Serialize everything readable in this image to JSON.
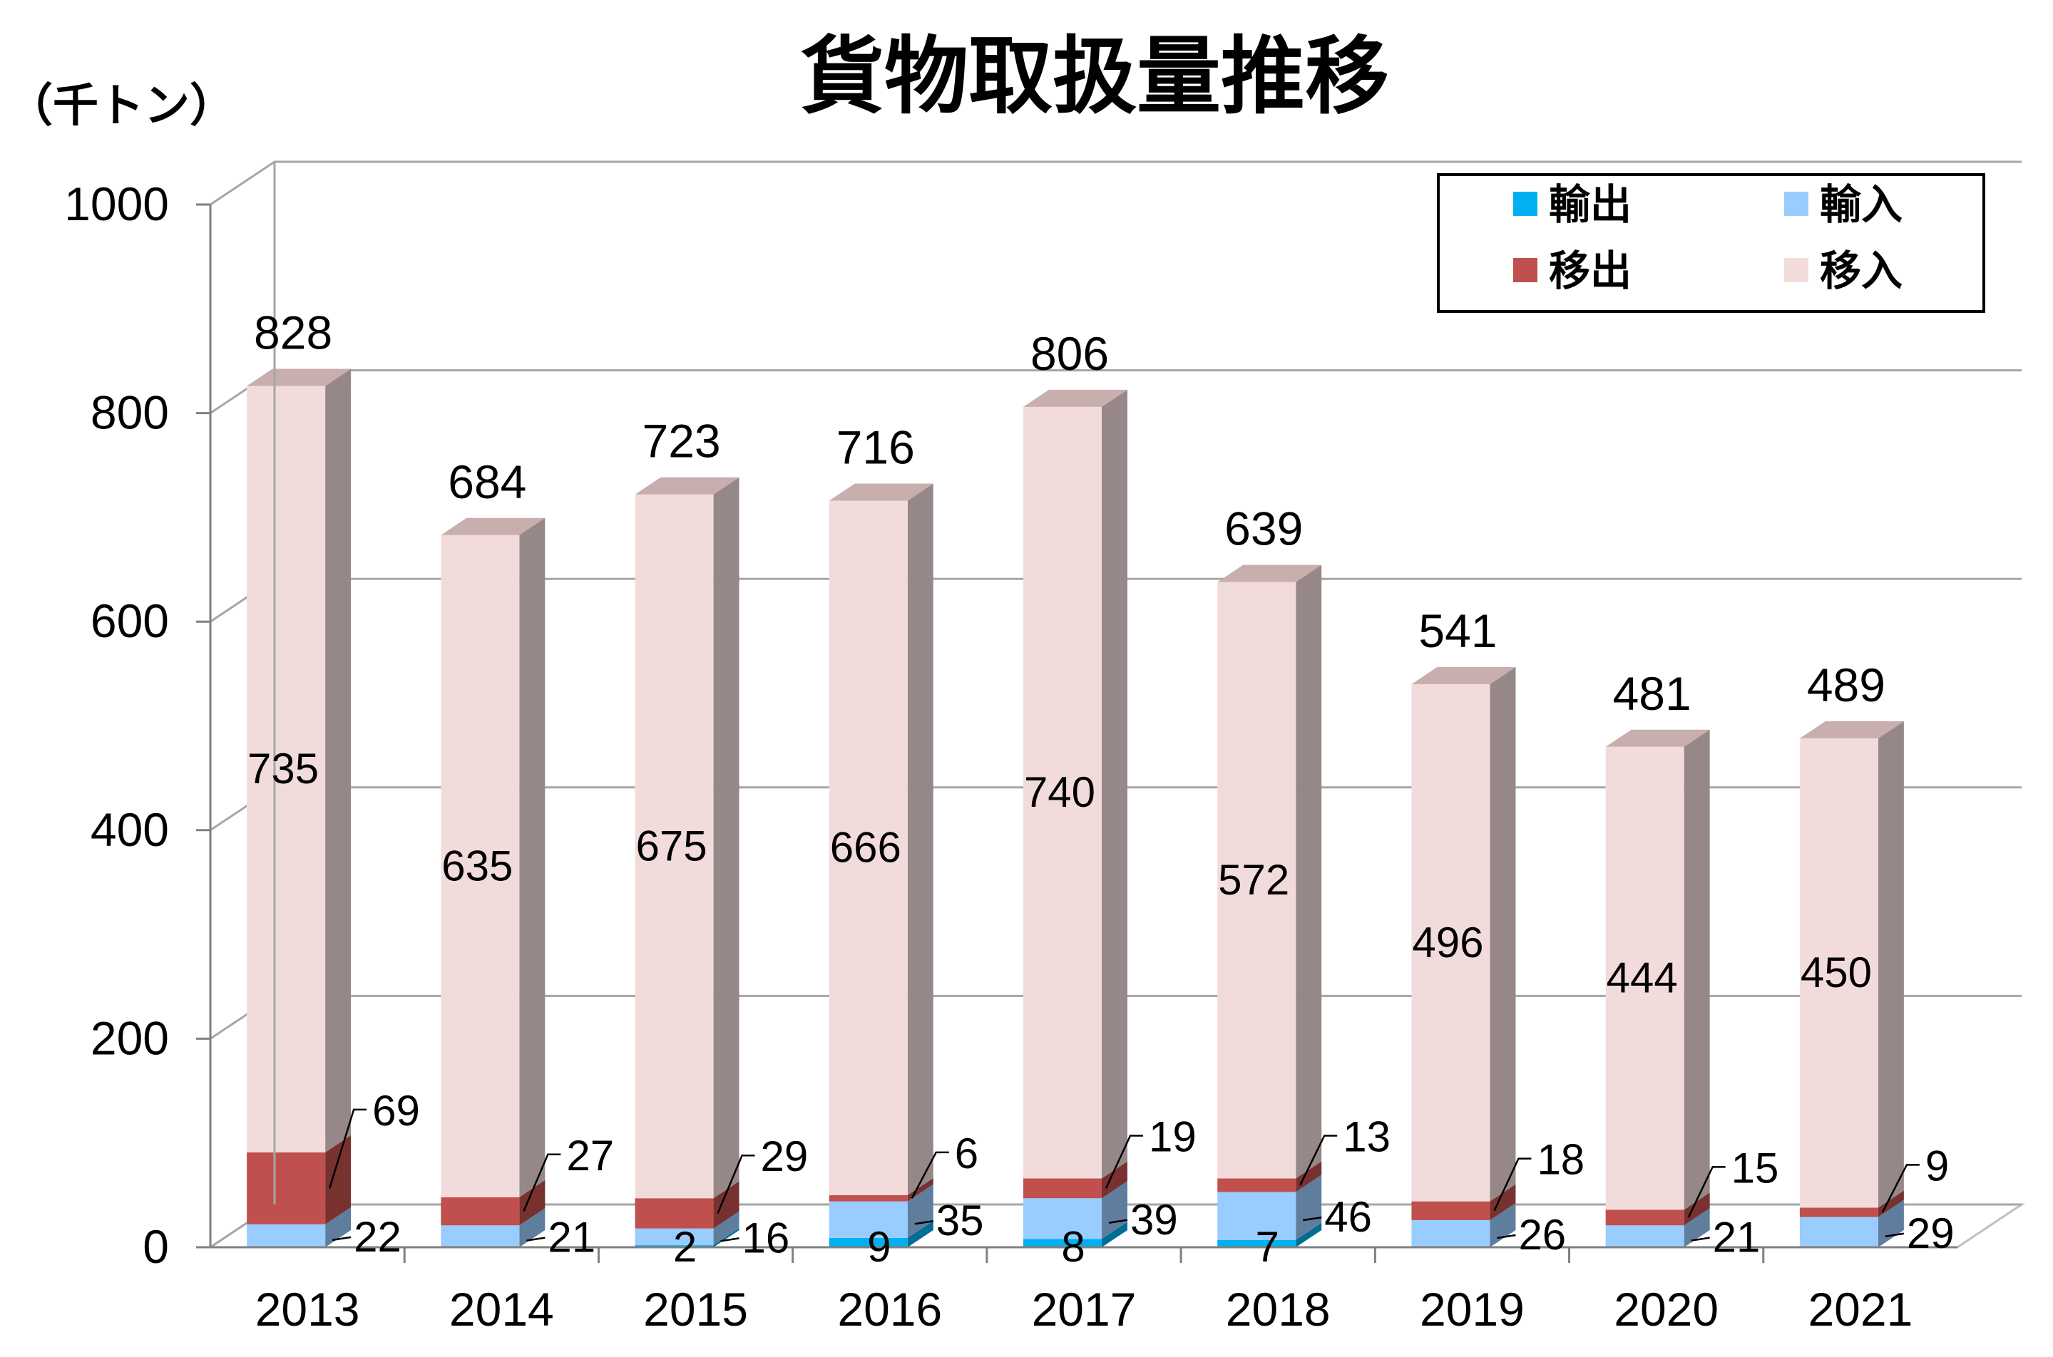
{
  "chart_data": {
    "type": "bar",
    "stacked": true,
    "three_d": true,
    "title": "貨物取扱量推移",
    "unit_label": "（千トン）",
    "categories": [
      "2013",
      "2014",
      "2015",
      "2016",
      "2017",
      "2018",
      "2019",
      "2020",
      "2021"
    ],
    "series": [
      {
        "name": "輸出",
        "color": "#00b0f0",
        "values": [
          0,
          0,
          2,
          9,
          8,
          7,
          0,
          0,
          0
        ]
      },
      {
        "name": "輸入",
        "color": "#99ccff",
        "values": [
          22,
          21,
          16,
          35,
          39,
          46,
          26,
          21,
          29
        ]
      },
      {
        "name": "移出",
        "color": "#c0504d",
        "values": [
          69,
          27,
          29,
          6,
          19,
          13,
          18,
          15,
          9
        ]
      },
      {
        "name": "移入",
        "color": "#f2dcdb",
        "values": [
          735,
          635,
          675,
          666,
          740,
          572,
          496,
          444,
          450
        ]
      }
    ],
    "labels": {
      "輸出": [
        "",
        "",
        "2",
        "9",
        "8",
        "7",
        "",
        "",
        ""
      ],
      "輸入": [
        "22",
        "21",
        "16",
        "35",
        "39",
        "46",
        "26",
        "21",
        "29"
      ],
      "移出": [
        "69",
        "27",
        "29",
        "6",
        "19",
        "13",
        "18",
        "15",
        "9"
      ],
      "移入": [
        "735",
        "635",
        "675",
        "666",
        "740",
        "572",
        "496",
        "444",
        "450"
      ]
    },
    "totals": [
      828,
      684,
      723,
      716,
      806,
      639,
      541,
      481,
      489
    ],
    "y_ticks": [
      "0",
      "200",
      "400",
      "600",
      "800",
      "1000"
    ],
    "ylim": [
      0,
      1000
    ],
    "grid": true,
    "legend_position": "top-right",
    "legend_order": [
      "輸出",
      "輸入",
      "移出",
      "移入"
    ]
  }
}
